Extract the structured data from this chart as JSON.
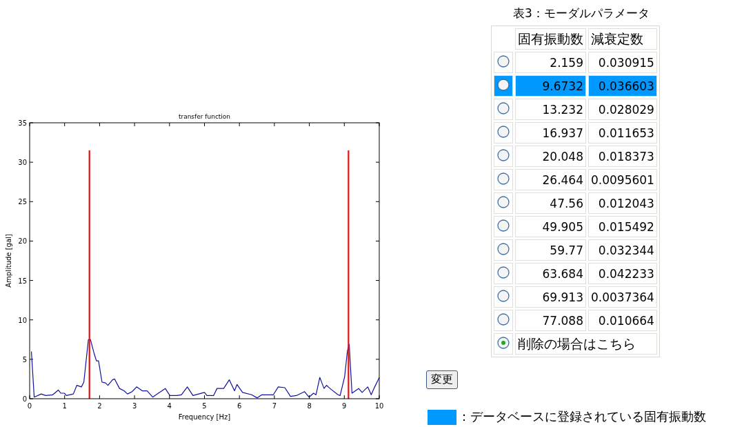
{
  "chart_data": [
    {
      "type": "line",
      "title": "transfer function",
      "xlabel": "Frequency [Hz]",
      "ylabel": "Amplitude [gal]",
      "xlim": [
        0,
        10
      ],
      "ylim": [
        0,
        35
      ],
      "xticks": [
        0,
        1,
        2,
        3,
        4,
        5,
        6,
        7,
        8,
        9,
        10
      ],
      "yticks": [
        0,
        5,
        10,
        15,
        20,
        25,
        30,
        35
      ],
      "series": [
        {
          "color": "#1010a0",
          "x": [
            0.05,
            0.13,
            0.33,
            0.46,
            0.66,
            0.82,
            0.89,
            0.99,
            1.05,
            1.25,
            1.35,
            1.48,
            1.55,
            1.68,
            1.74,
            1.84,
            1.91,
            1.97,
            2.07,
            2.17,
            2.24,
            2.37,
            2.43,
            2.57,
            2.7,
            2.8,
            2.93,
            3.06,
            3.22,
            3.36,
            3.52,
            3.68,
            3.88,
            4.01,
            4.21,
            4.34,
            4.51,
            4.67,
            5.0,
            5.07,
            5.26,
            5.36,
            5.55,
            5.71,
            5.86,
            5.93,
            6.09,
            6.35,
            6.51,
            6.64,
            6.97,
            7.11,
            7.3,
            7.46,
            7.63,
            7.86,
            7.99,
            8.12,
            8.19,
            8.3,
            8.42,
            8.49,
            8.59,
            8.82,
            8.88,
            9.01,
            9.09,
            9.14,
            9.22,
            9.41,
            9.51,
            9.67,
            9.77,
            9.87,
            9.97,
            10.0
          ],
          "values": [
            6.0,
            0.2,
            0.6,
            0.4,
            0.5,
            1.1,
            0.7,
            0.7,
            0.4,
            0.6,
            1.7,
            1.5,
            2.1,
            7.5,
            7.5,
            5.8,
            4.8,
            4.8,
            2.1,
            2.0,
            1.7,
            2.4,
            2.5,
            1.3,
            1.0,
            0.6,
            0.9,
            1.5,
            1.0,
            1.0,
            0.2,
            0.7,
            1.3,
            0.4,
            0.4,
            0.5,
            1.5,
            0.4,
            0.8,
            0.4,
            0.4,
            1.3,
            1.3,
            2.4,
            1.0,
            1.8,
            0.8,
            0.5,
            0.1,
            0.5,
            0.5,
            1.5,
            1.4,
            0.3,
            0.4,
            0.9,
            0.2,
            0.7,
            0.5,
            2.7,
            1.3,
            1.7,
            1.3,
            0.5,
            0.4,
            2.8,
            6.1,
            6.9,
            0.7,
            1.3,
            0.8,
            1.5,
            0.5,
            1.5,
            2.4,
            2.7
          ]
        },
        {
          "color": "#e01010",
          "x": [
            1.71,
            1.71
          ],
          "values": [
            0,
            31.5
          ]
        },
        {
          "color": "#e01010",
          "x": [
            9.12,
            9.12
          ],
          "values": [
            0,
            31.5
          ]
        }
      ]
    },
    {
      "type": "other",
      "title": "表3：モーダルパラメータ",
      "colors": [
        null,
        "#0099ff",
        null,
        null,
        null,
        null,
        null,
        null,
        null,
        null,
        null,
        null
      ],
      "annotations": [
        "固有振動数",
        "減衰定数",
        "2.159",
        "0.030915",
        "9.6732",
        "0.036603",
        "13.232",
        "0.028029",
        "16.937",
        "0.011653",
        "20.048",
        "0.018373",
        "26.464",
        "0.0095601",
        "47.56",
        "0.012043",
        "49.905",
        "0.015492",
        "59.77",
        "0.032344",
        "63.684",
        "0.042233",
        "69.913",
        "0.0037364",
        "77.088",
        "0.010664",
        "削除の場合はこちら",
        "変更",
        "：データベースに登録されている固有振動数"
      ]
    }
  ]
}
